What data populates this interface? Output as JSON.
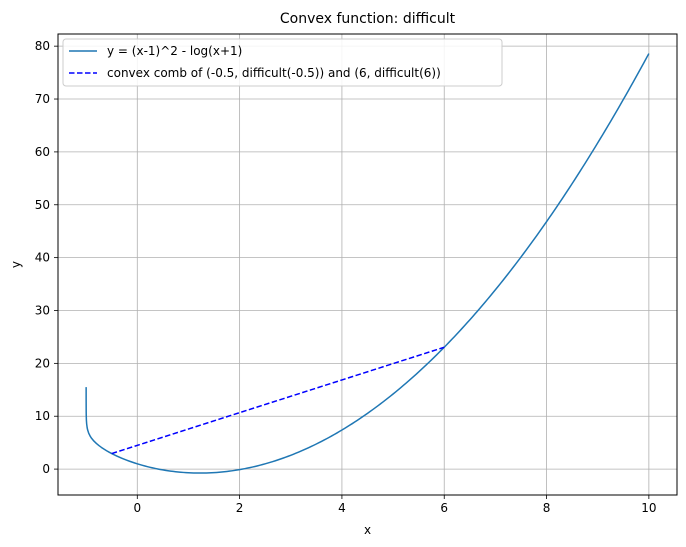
{
  "chart_data": {
    "type": "line",
    "title": "Convex function: difficult",
    "xlabel": "x",
    "ylabel": "y",
    "xlim": [
      -1.55,
      10.55
    ],
    "ylim": [
      -4.9,
      82.3
    ],
    "xticks": [
      0,
      2,
      4,
      6,
      8,
      10
    ],
    "yticks": [
      0,
      10,
      20,
      30,
      40,
      50,
      60,
      70,
      80
    ],
    "xtick_labels": [
      "0",
      "2",
      "4",
      "6",
      "8",
      "10"
    ],
    "ytick_labels": [
      "0",
      "10",
      "20",
      "30",
      "40",
      "50",
      "60",
      "70",
      "80"
    ],
    "grid": true,
    "legend_position": "upper-left",
    "series": [
      {
        "name": "y = (x-1)^2 - log(x+1)",
        "style": "solid",
        "color": "#1f77b4",
        "function": "(x-1)^2 - log(x+1)",
        "domain": [
          -0.99999,
          10
        ],
        "x": [
          -0.99999,
          -0.999,
          -0.99,
          -0.95,
          -0.9,
          -0.8,
          -0.6,
          -0.4,
          -0.2,
          0,
          0.5,
          1,
          1.25,
          1.5,
          2,
          3,
          4,
          5,
          6,
          7,
          8,
          9,
          10
        ],
        "y": [
          13.2,
          10.9,
          8.6,
          6.8,
          5.91,
          4.85,
          3.48,
          2.47,
          1.66,
          1.0,
          -0.16,
          -0.69,
          -0.75,
          -0.67,
          -0.1,
          2.61,
          7.39,
          14.21,
          23.05,
          33.92,
          46.8,
          61.7,
          78.6
        ]
      },
      {
        "name": "convex comb of (-0.5, difficult(-0.5)) and (6, difficult(6))",
        "style": "dashed",
        "color": "#0000ff",
        "x": [
          -0.5,
          6
        ],
        "y": [
          2.94,
          23.05
        ]
      }
    ]
  }
}
